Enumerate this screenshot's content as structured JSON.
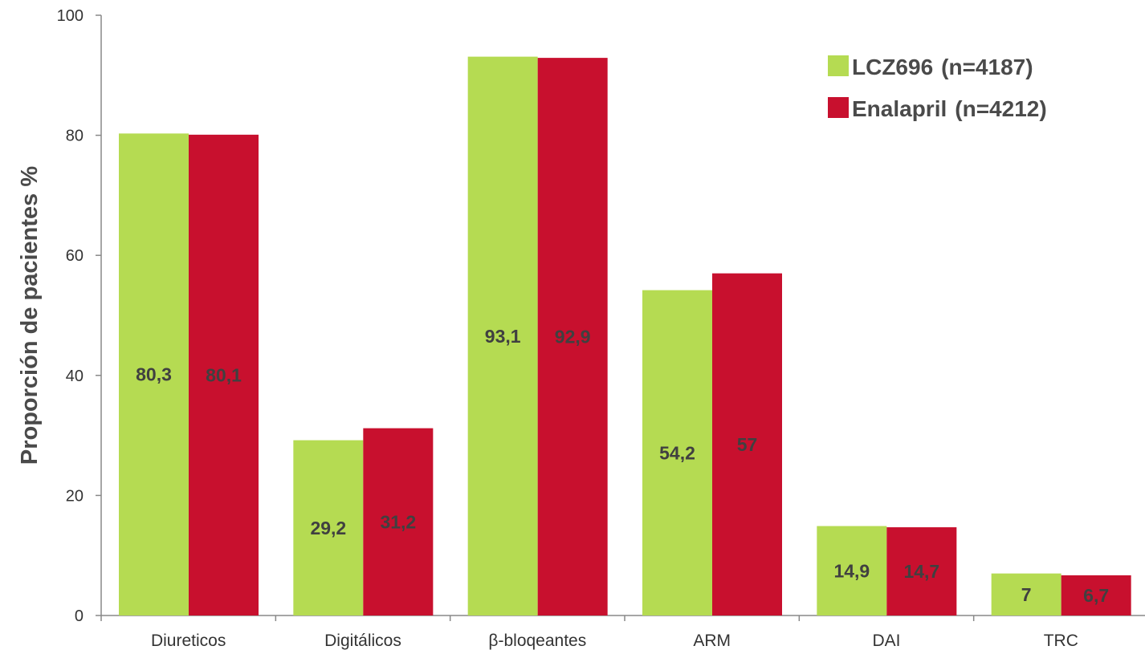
{
  "chart_data": {
    "type": "bar",
    "ylabel": "Proporción de pacientes %",
    "ylim": [
      0,
      100
    ],
    "yticks": [
      0,
      20,
      40,
      60,
      80,
      100
    ],
    "categories": [
      "Diureticos",
      "Digitálicos",
      "β-bloqeantes",
      "ARM",
      "DAI",
      "TRC"
    ],
    "series": [
      {
        "name": "LCZ696",
        "note": "(n=4187)",
        "color": "#b5db52",
        "values": [
          80.3,
          29.2,
          93.1,
          54.2,
          14.9,
          7
        ],
        "labels": [
          "80,3",
          "29,2",
          "93,1",
          "54,2",
          "14,9",
          "7"
        ]
      },
      {
        "name": "Enalapril",
        "note": "(n=4212)",
        "color": "#c8102e",
        "values": [
          80.1,
          31.2,
          92.9,
          57,
          14.7,
          6.7
        ],
        "labels": [
          "80,1",
          "31,2",
          "92,9",
          "57",
          "14,7",
          "6,7"
        ]
      }
    ],
    "legend_position": "top-right",
    "grid": false
  }
}
